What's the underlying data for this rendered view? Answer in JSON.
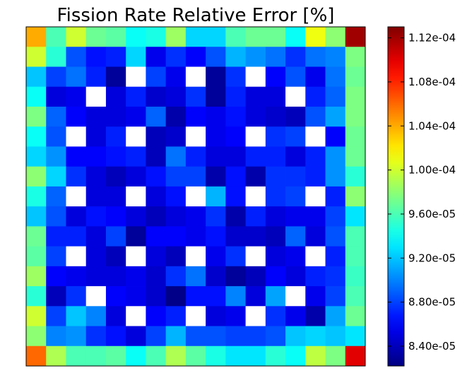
{
  "chart_data": {
    "type": "heatmap",
    "title": "Fission Rate Relative Error [%]",
    "rows": 17,
    "cols": 17,
    "grid": false,
    "colormap": "jet",
    "colorbar": {
      "placement": "right",
      "vmin": 8.22e-05,
      "vmax": 0.000113,
      "ticks": [
        8.4e-05,
        8.8e-05,
        9.2e-05,
        9.6e-05,
        0.0001,
        0.000104,
        0.000108,
        0.000112
      ],
      "tick_labels": [
        "8.40e-05",
        "8.80e-05",
        "9.20e-05",
        "9.60e-05",
        "1.00e-04",
        "1.04e-04",
        "1.08e-04",
        "1.12e-04"
      ]
    },
    "values": [
      [
        0.000104,
        9.6e-05,
        0.0001,
        9.7e-05,
        9.65e-05,
        9.4e-05,
        9.45e-05,
        9.85e-05,
        9.25e-05,
        9.25e-05,
        9.6e-05,
        9.7e-05,
        9.7e-05,
        9.4e-05,
        0.000101,
        9.8e-05,
        0.000112
      ],
      [
        0.0001,
        9.5e-05,
        8.85e-05,
        8.65e-05,
        8.7e-05,
        9.25e-05,
        8.55e-05,
        8.75e-05,
        8.6e-05,
        8.85e-05,
        9.15e-05,
        9.05e-05,
        8.95e-05,
        8.75e-05,
        8.95e-05,
        9e-05,
        9.75e-05
      ],
      [
        9.2e-05,
        8.8e-05,
        8.95e-05,
        8.7e-05,
        8.3e-05,
        null,
        8.8e-05,
        8.55e-05,
        null,
        8.3e-05,
        8.75e-05,
        null,
        8.6e-05,
        8.85e-05,
        8.55e-05,
        8.95e-05,
        9.7e-05
      ],
      [
        9.4e-05,
        8.5e-05,
        8.55e-05,
        null,
        8.5e-05,
        8.7e-05,
        8.45e-05,
        8.5e-05,
        8.75e-05,
        8.3e-05,
        8.7e-05,
        8.5e-05,
        8.5e-05,
        null,
        8.7e-05,
        8.9e-05,
        9.75e-05
      ],
      [
        9.75e-05,
        8.9e-05,
        8.6e-05,
        8.5e-05,
        8.5e-05,
        8.55e-05,
        8.9e-05,
        8.35e-05,
        8.6e-05,
        8.55e-05,
        8.65e-05,
        8.5e-05,
        8.45e-05,
        8.4e-05,
        8.85e-05,
        9.1e-05,
        9.75e-05
      ],
      [
        9.4e-05,
        8.85e-05,
        null,
        8.5e-05,
        8.7e-05,
        null,
        8.4e-05,
        8.45e-05,
        null,
        8.55e-05,
        8.6e-05,
        null,
        8.75e-05,
        8.8e-05,
        null,
        8.6e-05,
        9.7e-05
      ],
      [
        9.25e-05,
        9.05e-05,
        8.6e-05,
        8.6e-05,
        8.65e-05,
        8.7e-05,
        8.4e-05,
        8.95e-05,
        8.7e-05,
        8.5e-05,
        8.5e-05,
        8.7e-05,
        8.7e-05,
        8.5e-05,
        8.7e-05,
        9.05e-05,
        9.7e-05
      ],
      [
        9.8e-05,
        9.25e-05,
        8.75e-05,
        8.5e-05,
        8.4e-05,
        8.5e-05,
        8.65e-05,
        8.8e-05,
        8.8e-05,
        8.35e-05,
        8.65e-05,
        8.35e-05,
        8.75e-05,
        8.75e-05,
        8.7e-05,
        9.05e-05,
        9.5e-05
      ],
      [
        9.45e-05,
        8.9e-05,
        null,
        8.5e-05,
        8.5e-05,
        null,
        8.5e-05,
        8.65e-05,
        null,
        9.15e-05,
        8.65e-05,
        null,
        8.75e-05,
        8.8e-05,
        null,
        8.7e-05,
        9.8e-05
      ],
      [
        9.2e-05,
        8.85e-05,
        8.5e-05,
        8.65e-05,
        8.6e-05,
        8.5e-05,
        8.4e-05,
        8.5e-05,
        8.55e-05,
        8.75e-05,
        8.35e-05,
        8.7e-05,
        8.5e-05,
        8.55e-05,
        8.55e-05,
        8.8e-05,
        9.3e-05
      ],
      [
        9.7e-05,
        8.7e-05,
        8.7e-05,
        8.5e-05,
        8.8e-05,
        8.3e-05,
        8.6e-05,
        8.6e-05,
        8.55e-05,
        8.65e-05,
        8.45e-05,
        8.45e-05,
        8.4e-05,
        8.9e-05,
        8.5e-05,
        8.85e-05,
        9.6e-05
      ],
      [
        9.65e-05,
        8.8e-05,
        null,
        8.5e-05,
        8.4e-05,
        null,
        8.5e-05,
        8.4e-05,
        null,
        8.55e-05,
        8.75e-05,
        null,
        8.5e-05,
        8.55e-05,
        null,
        8.7e-05,
        9.6e-05
      ],
      [
        9.85e-05,
        8.6e-05,
        8.55e-05,
        8.5e-05,
        8.5e-05,
        8.55e-05,
        8.45e-05,
        8.75e-05,
        8.95e-05,
        8.45e-05,
        8.3e-05,
        8.4e-05,
        8.6e-05,
        8.5e-05,
        8.7e-05,
        8.75e-05,
        9.55e-05
      ],
      [
        9.5e-05,
        8.4e-05,
        8.75e-05,
        null,
        8.6e-05,
        8.55e-05,
        8.45e-05,
        8.25e-05,
        8.65e-05,
        8.65e-05,
        9e-05,
        8.5e-05,
        9.1e-05,
        null,
        8.55e-05,
        8.8e-05,
        9.6e-05
      ],
      [
        0.0001,
        8.8e-05,
        9.2e-05,
        9e-05,
        8.5e-05,
        null,
        8.6e-05,
        8.7e-05,
        null,
        8.5e-05,
        8.55e-05,
        null,
        8.75e-05,
        8.55e-05,
        8.35e-05,
        9.1e-05,
        9.7e-05
      ],
      [
        9.8e-05,
        9e-05,
        9.05e-05,
        8.75e-05,
        8.65e-05,
        8.5e-05,
        8.8e-05,
        9.15e-05,
        8.85e-05,
        8.85e-05,
        8.8e-05,
        8.8e-05,
        8.85e-05,
        9.2e-05,
        9.25e-05,
        9.2e-05,
        9.3e-05
      ],
      [
        0.000106,
        9.9e-05,
        9.6e-05,
        9.6e-05,
        9.65e-05,
        9.4e-05,
        9.6e-05,
        9.9e-05,
        9.65e-05,
        9.45e-05,
        9.3e-05,
        9.3e-05,
        9.5e-05,
        9.4e-05,
        9.95e-05,
        9.75e-05,
        0.00011
      ]
    ]
  }
}
